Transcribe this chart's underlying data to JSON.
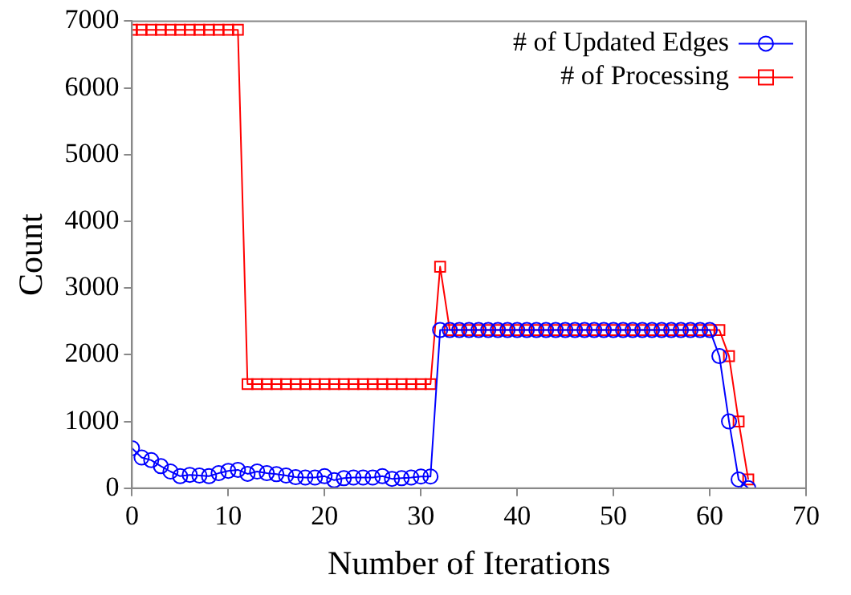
{
  "chart_data": {
    "type": "line",
    "xlabel": "Number of Iterations",
    "ylabel": "Count",
    "x": [
      0,
      1,
      2,
      3,
      4,
      5,
      6,
      7,
      8,
      9,
      10,
      11,
      12,
      13,
      14,
      15,
      16,
      17,
      18,
      19,
      20,
      21,
      22,
      23,
      24,
      25,
      26,
      27,
      28,
      29,
      30,
      31,
      32,
      33,
      34,
      35,
      36,
      37,
      38,
      39,
      40,
      41,
      42,
      43,
      44,
      45,
      46,
      47,
      48,
      49,
      50,
      51,
      52,
      53,
      54,
      55,
      56,
      57,
      58,
      59,
      60,
      61,
      62,
      63,
      64
    ],
    "series": [
      {
        "name": "# of Updated Edges",
        "color": "#0000ff",
        "marker": "circle",
        "values": [
          600,
          460,
          420,
          330,
          250,
          180,
          200,
          190,
          180,
          225,
          260,
          275,
          215,
          250,
          225,
          210,
          190,
          165,
          160,
          160,
          180,
          120,
          150,
          160,
          160,
          160,
          180,
          140,
          150,
          160,
          175,
          175,
          2370,
          2370,
          2370,
          2370,
          2370,
          2370,
          2370,
          2370,
          2370,
          2370,
          2370,
          2370,
          2370,
          2370,
          2370,
          2370,
          2370,
          2370,
          2370,
          2370,
          2370,
          2370,
          2370,
          2370,
          2370,
          2370,
          2370,
          2370,
          2370,
          1980,
          1000,
          130,
          0
        ]
      },
      {
        "name": "# of Processing",
        "color": "#ff0000",
        "marker": "square",
        "values": [
          6870,
          6870,
          6870,
          6870,
          6870,
          6870,
          6870,
          6870,
          6870,
          6870,
          6870,
          6870,
          1560,
          1560,
          1560,
          1560,
          1560,
          1560,
          1560,
          1560,
          1560,
          1560,
          1560,
          1560,
          1560,
          1560,
          1560,
          1560,
          1560,
          1560,
          1560,
          1560,
          3320,
          2370,
          2370,
          2370,
          2370,
          2370,
          2370,
          2370,
          2370,
          2370,
          2370,
          2370,
          2370,
          2370,
          2370,
          2370,
          2370,
          2370,
          2370,
          2370,
          2370,
          2370,
          2370,
          2370,
          2370,
          2370,
          2370,
          2370,
          2370,
          2370,
          1980,
          1000,
          130
        ]
      }
    ],
    "xlim": [
      0,
      70
    ],
    "xticks": [
      0,
      10,
      20,
      30,
      40,
      50,
      60,
      70
    ],
    "ylim": [
      0,
      7000
    ],
    "yticks": [
      0,
      1000,
      2000,
      3000,
      4000,
      5000,
      6000,
      7000
    ],
    "grid": false,
    "legend": "top right"
  }
}
